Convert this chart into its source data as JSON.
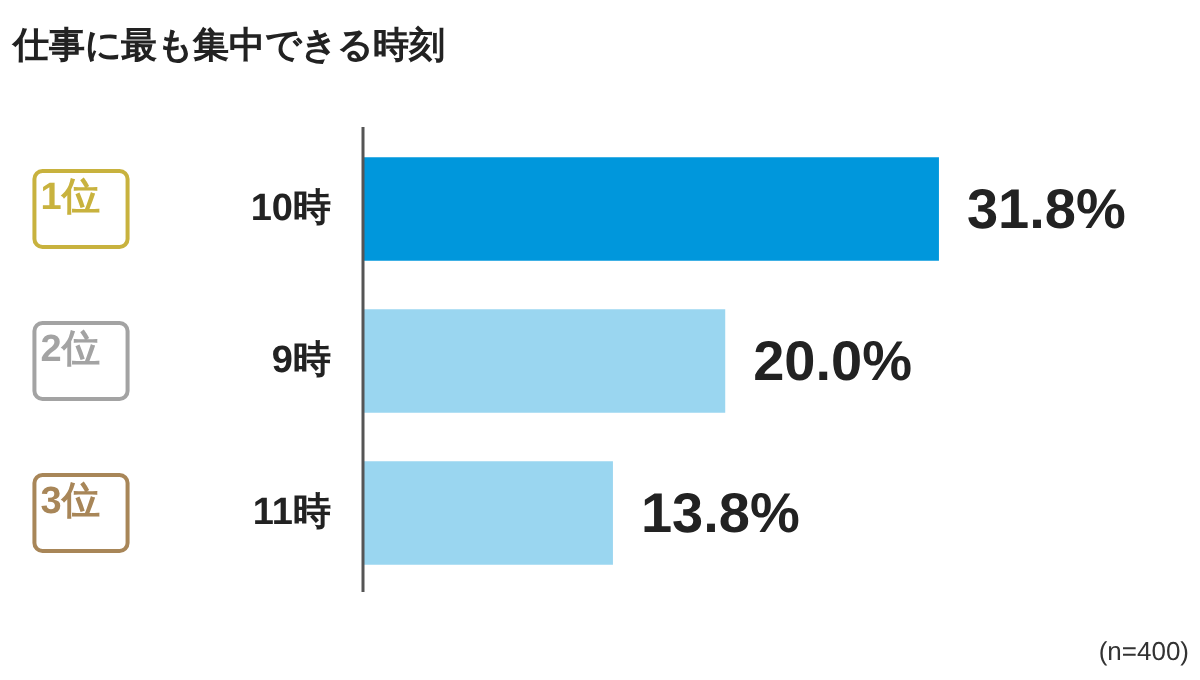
{
  "chart_data": {
    "type": "bar",
    "orientation": "horizontal",
    "title": "仕事に最も集中できる時刻",
    "categories": [
      "10時",
      "9時",
      "11時"
    ],
    "values": [
      31.8,
      20.0,
      13.8
    ],
    "colors": [
      "#0097dc",
      "#9ad6f0",
      "#9ad6f0"
    ],
    "value_labels": [
      "31.8%",
      "20.0%",
      "13.8%"
    ],
    "annotations": [
      "1位",
      "2位",
      "3位",
      "(n=400)"
    ]
  }
}
